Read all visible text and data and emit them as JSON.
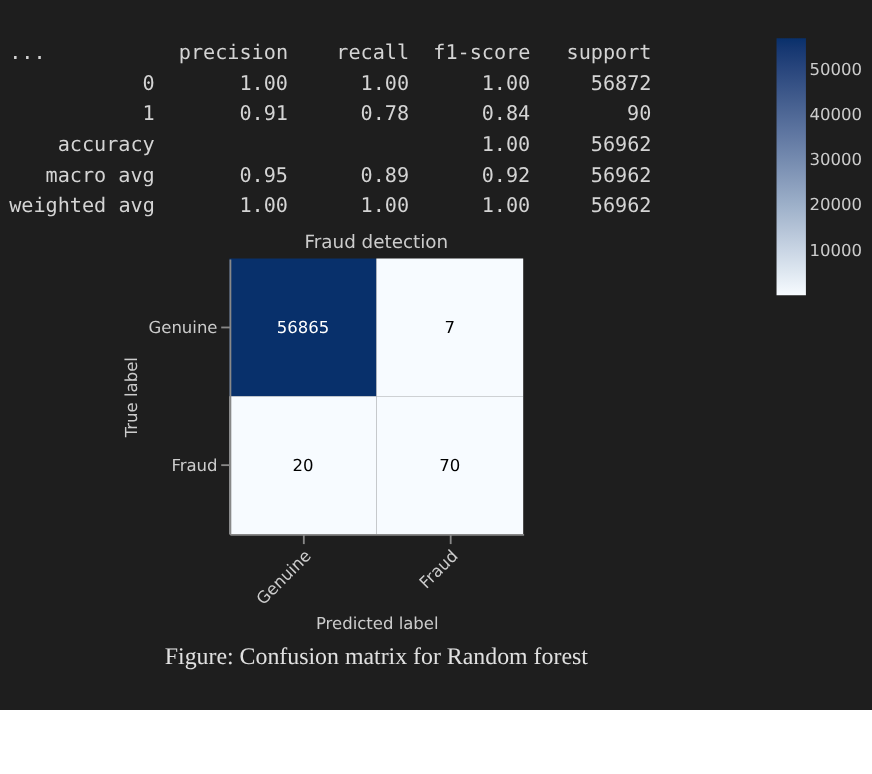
{
  "chart_data": {
    "type": "heatmap",
    "title": "Fraud detection",
    "xlabel": "Predicted label",
    "ylabel": "True label",
    "categories": [
      "Genuine",
      "Fraud"
    ],
    "y_categories": [
      "Genuine",
      "Fraud"
    ],
    "cells": [
      [
        56865,
        7
      ],
      [
        20,
        70
      ]
    ],
    "data_labels": true,
    "clim": [
      7,
      56865
    ],
    "cticks": [
      10000,
      20000,
      30000,
      40000,
      50000
    ],
    "annotations": [
      "...           precision    recall  f1-score   support",
      "           0       1.00      1.00      1.00     56872",
      "           1       0.91      0.78      0.84        90",
      "    accuracy                           1.00     56962",
      "   macro avg       0.95      0.89      0.92     56962",
      "weighted avg       1.00      1.00      1.00     56962",
      "Figure: Confusion matrix for Random forest"
    ]
  }
}
